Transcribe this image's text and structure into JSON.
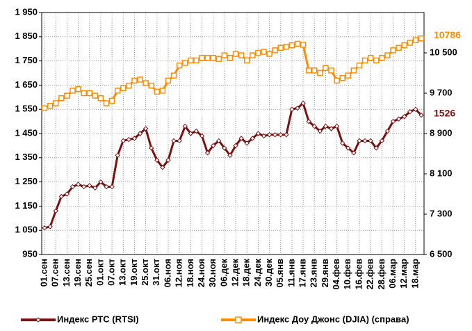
{
  "chart_data": {
    "type": "line",
    "categories": [
      "01.сен",
      null,
      "07.сен",
      null,
      "13.сен",
      null,
      "19.сен",
      null,
      "25.сен",
      null,
      "01.окт",
      null,
      "07.окт",
      null,
      "13.окт",
      null,
      "19.окт",
      null,
      "25.окт",
      null,
      "31.окт",
      null,
      "06.ноя",
      null,
      "12.ноя",
      null,
      "18.ноя",
      null,
      "24.ноя",
      null,
      "30.ноя",
      null,
      "06.дек",
      null,
      "12.дек",
      null,
      "18.дек",
      null,
      "24.дек",
      null,
      "30.дек",
      null,
      "05.янв",
      null,
      "11.янв",
      null,
      "17.янв",
      null,
      "23.янв",
      null,
      "29.янв",
      null,
      "04.фев",
      null,
      "10.фев",
      null,
      "16.фев",
      null,
      "22.фев",
      null,
      "28.фев",
      null,
      "06.мар",
      null,
      "12.мар",
      null,
      "18.мар",
      null
    ],
    "series": [
      {
        "name": "Индекс РТС (RTSI)",
        "color": "#7b1010",
        "marker": "diamond",
        "values": [
          1060,
          1065,
          1130,
          1190,
          1200,
          1230,
          1240,
          1230,
          1235,
          1225,
          1250,
          1230,
          1230,
          1360,
          1420,
          1425,
          1430,
          1450,
          1470,
          1390,
          1340,
          1310,
          1340,
          1420,
          1420,
          1480,
          1450,
          1460,
          1440,
          1370,
          1400,
          1420,
          1390,
          1360,
          1400,
          1430,
          1410,
          1430,
          1450,
          1440,
          1445,
          1445,
          1445,
          1445,
          1550,
          1555,
          1575,
          1500,
          1480,
          1460,
          1480,
          1470,
          1480,
          1410,
          1390,
          1370,
          1420,
          1420,
          1420,
          1390,
          1420,
          1460,
          1500,
          1510,
          1520,
          1540,
          1550,
          1526
        ]
      },
      {
        "name": "Индекс Доу Джонс (DJIA) (справа)",
        "color": "#ff8c00",
        "marker": "square",
        "axis": "y2",
        "values": [
          9400,
          9450,
          9500,
          9600,
          9650,
          9750,
          9780,
          9700,
          9700,
          9650,
          9600,
          9500,
          9550,
          9750,
          9800,
          9850,
          9950,
          9970,
          9900,
          9850,
          9730,
          9750,
          9950,
          10050,
          10250,
          10300,
          10350,
          10350,
          10400,
          10400,
          10400,
          10380,
          10450,
          10400,
          10480,
          10450,
          10350,
          10450,
          10500,
          10520,
          10480,
          10550,
          10600,
          10620,
          10650,
          10680,
          10660,
          10150,
          10150,
          10100,
          10200,
          10150,
          9950,
          10000,
          10050,
          10150,
          10250,
          10350,
          10400,
          10350,
          10400,
          10450,
          10550,
          10600,
          10650,
          10700,
          10750,
          10786
        ]
      }
    ],
    "annotations": [
      "10786",
      "1526"
    ],
    "ylim": [
      950,
      1950
    ],
    "yticks": [
      {
        "value": 950,
        "label": "950"
      },
      {
        "value": 1050,
        "label": "1 050"
      },
      {
        "value": 1150,
        "label": "1 150"
      },
      {
        "value": 1250,
        "label": "1 250"
      },
      {
        "value": 1350,
        "label": "1 350"
      },
      {
        "value": 1450,
        "label": "1 450"
      },
      {
        "value": 1550,
        "label": "1 550"
      },
      {
        "value": 1650,
        "label": "1 650"
      },
      {
        "value": 1750,
        "label": "1 750"
      },
      {
        "value": 1850,
        "label": "1 850"
      },
      {
        "value": 1950,
        "label": "1 950"
      }
    ],
    "y2lim": [
      6500,
      11300
    ],
    "y2ticks": [
      {
        "value": 6500,
        "label": "6 500"
      },
      {
        "value": 7300,
        "label": "7 300"
      },
      {
        "value": 8100,
        "label": "8 100"
      },
      {
        "value": 8900,
        "label": "8 900"
      },
      {
        "value": 9700,
        "label": "9 700"
      },
      {
        "value": 10500,
        "label": "10 500"
      }
    ],
    "grid": true,
    "legend": "bottom"
  }
}
